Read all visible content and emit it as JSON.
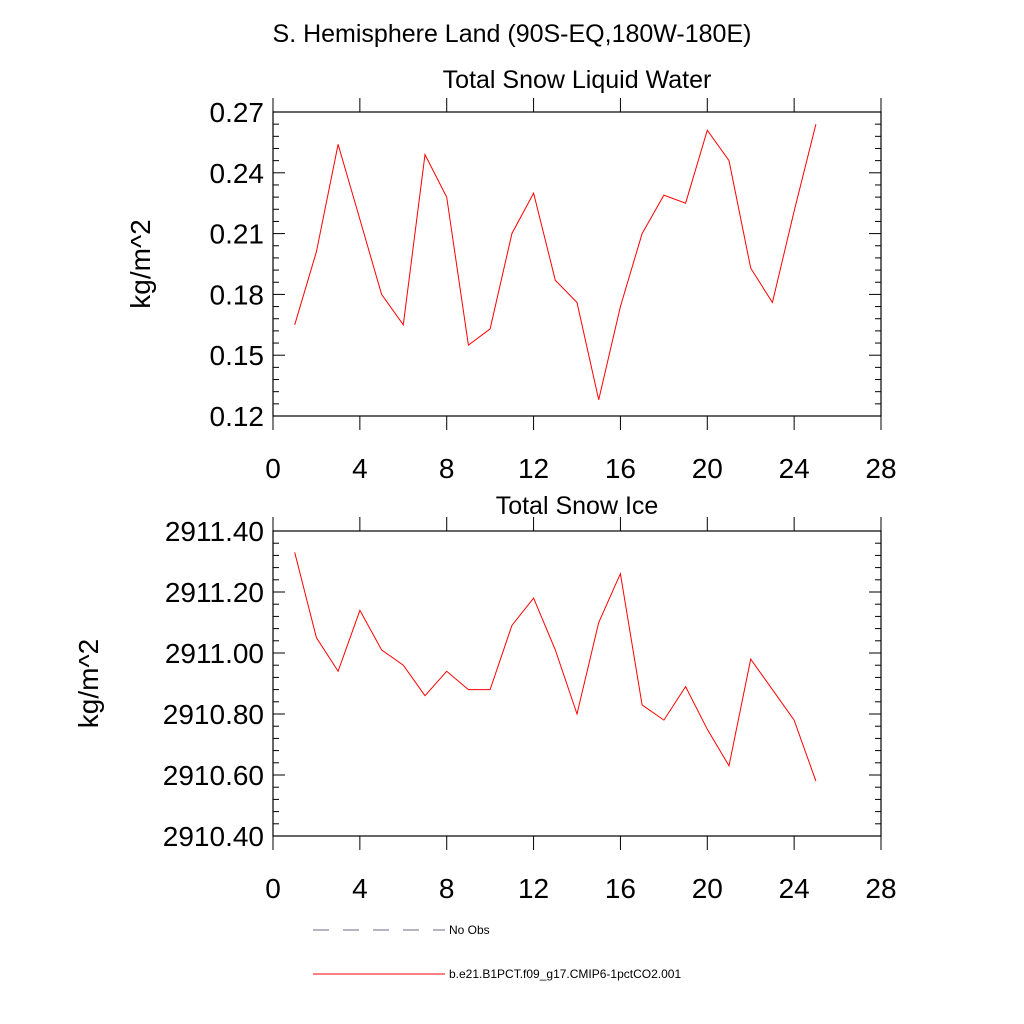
{
  "figure_title": "S. Hemisphere Land (90S-EQ,180W-180E)",
  "chart_data": [
    {
      "type": "line",
      "title": "Total Snow Liquid Water",
      "xlabel": "",
      "ylabel": "kg/m^2",
      "xlim": [
        0,
        28
      ],
      "ylim": [
        0.12,
        0.27
      ],
      "xticks": [
        0,
        4,
        8,
        12,
        16,
        20,
        24,
        28
      ],
      "xtick_labels": [
        "0",
        "4",
        "8",
        "12",
        "16",
        "20",
        "24",
        "28"
      ],
      "yticks": [
        0.12,
        0.15,
        0.18,
        0.21,
        0.24,
        0.27
      ],
      "ytick_labels": [
        "0.12",
        "0.15",
        "0.18",
        "0.21",
        "0.24",
        "0.27"
      ],
      "series": [
        {
          "name": "b.e21.B1PCT.f09_g17.CMIP6-1pctCO2.001",
          "color": "#ff0000",
          "x": [
            1,
            2,
            3,
            4,
            5,
            6,
            7,
            8,
            9,
            10,
            11,
            12,
            13,
            14,
            15,
            16,
            17,
            18,
            19,
            20,
            21,
            22,
            23,
            24,
            25
          ],
          "values": [
            0.165,
            0.201,
            0.254,
            0.217,
            0.18,
            0.165,
            0.249,
            0.228,
            0.155,
            0.163,
            0.21,
            0.23,
            0.187,
            0.176,
            0.128,
            0.174,
            0.21,
            0.229,
            0.225,
            0.261,
            0.246,
            0.193,
            0.176,
            0.221,
            0.264
          ]
        }
      ]
    },
    {
      "type": "line",
      "title": "Total Snow Ice",
      "xlabel": "",
      "ylabel": "kg/m^2",
      "xlim": [
        0,
        28
      ],
      "ylim": [
        2910.4,
        2911.4
      ],
      "xticks": [
        0,
        4,
        8,
        12,
        16,
        20,
        24,
        28
      ],
      "xtick_labels": [
        "0",
        "4",
        "8",
        "12",
        "16",
        "20",
        "24",
        "28"
      ],
      "yticks": [
        2910.4,
        2910.6,
        2910.8,
        2911.0,
        2911.2,
        2911.4
      ],
      "ytick_labels": [
        "2910.40",
        "2910.60",
        "2910.80",
        "2911.00",
        "2911.20",
        "2911.40"
      ],
      "series": [
        {
          "name": "b.e21.B1PCT.f09_g17.CMIP6-1pctCO2.001",
          "color": "#ff0000",
          "x": [
            1,
            2,
            3,
            4,
            5,
            6,
            7,
            8,
            9,
            10,
            11,
            12,
            13,
            14,
            15,
            16,
            17,
            18,
            19,
            20,
            21,
            22,
            23,
            24,
            25
          ],
          "values": [
            2911.33,
            2911.05,
            2910.94,
            2911.14,
            2911.01,
            2910.96,
            2910.86,
            2910.94,
            2910.88,
            2910.88,
            2911.09,
            2911.18,
            2911.01,
            2910.8,
            2911.1,
            2911.26,
            2910.83,
            2910.78,
            2910.89,
            2910.75,
            2910.63,
            2910.98,
            2910.88,
            2910.78,
            2910.58
          ]
        }
      ]
    }
  ],
  "legend": {
    "placement": "bottom",
    "items": [
      {
        "label": "No Obs",
        "style": "dashed",
        "color": "#6a6a8a"
      },
      {
        "label": "b.e21.B1PCT.f09_g17.CMIP6-1pctCO2.001",
        "style": "solid",
        "color": "#ff0000"
      }
    ]
  }
}
